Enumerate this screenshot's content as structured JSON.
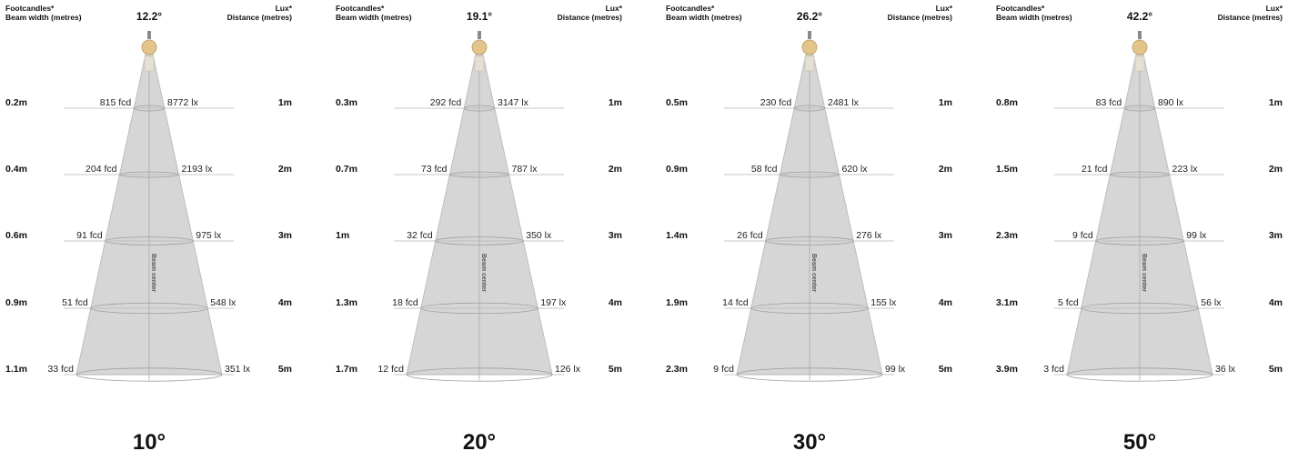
{
  "header": {
    "left_label_1": "Footcandles*",
    "left_label_2": "Beam width (metres)",
    "right_label_1": "Lux*",
    "right_label_2": "Distance (metres)",
    "beam_center_label": "Beam center"
  },
  "distances": [
    "1m",
    "2m",
    "3m",
    "4m",
    "5m"
  ],
  "panels": [
    {
      "angle_label": "10°",
      "beam_angle": "12.2°",
      "beam_widths": [
        "0.2m",
        "0.4m",
        "0.6m",
        "0.9m",
        "1.1m"
      ],
      "footcandles": [
        "815 fcd",
        "204 fcd",
        "91 fcd",
        "51 fcd",
        "33 fcd"
      ],
      "lux": [
        "8772 lx",
        "2193 lx",
        "975 lx",
        "548 lx",
        "351 lx"
      ]
    },
    {
      "angle_label": "20°",
      "beam_angle": "19.1°",
      "beam_widths": [
        "0.3m",
        "0.7m",
        "1m",
        "1.3m",
        "1.7m"
      ],
      "footcandles": [
        "292 fcd",
        "73 fcd",
        "32 fcd",
        "18 fcd",
        "12 fcd"
      ],
      "lux": [
        "3147 lx",
        "787 lx",
        "350 lx",
        "197 lx",
        "126 lx"
      ]
    },
    {
      "angle_label": "30°",
      "beam_angle": "26.2°",
      "beam_widths": [
        "0.5m",
        "0.9m",
        "1.4m",
        "1.9m",
        "2.3m"
      ],
      "footcandles": [
        "230 fcd",
        "58 fcd",
        "26 fcd",
        "14 fcd",
        "9 fcd"
      ],
      "lux": [
        "2481 lx",
        "620 lx",
        "276 lx",
        "155 lx",
        "99 lx"
      ]
    },
    {
      "angle_label": "50°",
      "beam_angle": "42.2°",
      "beam_widths": [
        "0.8m",
        "1.5m",
        "2.3m",
        "3.1m",
        "3.9m"
      ],
      "footcandles": [
        "83 fcd",
        "21 fcd",
        "9 fcd",
        "5 fcd",
        "3 fcd"
      ],
      "lux": [
        "890 lx",
        "223 lx",
        "99 lx",
        "56 lx",
        "36 lx"
      ]
    }
  ],
  "colors": {
    "cone_fill": "#d6d6d6",
    "cone_stroke": "#bdbdbd",
    "lamp_body": "#e3c48a",
    "lamp_stroke": "#b89a60",
    "stem": "#8a8a8a",
    "guide_line": "#b5b5b5"
  }
}
